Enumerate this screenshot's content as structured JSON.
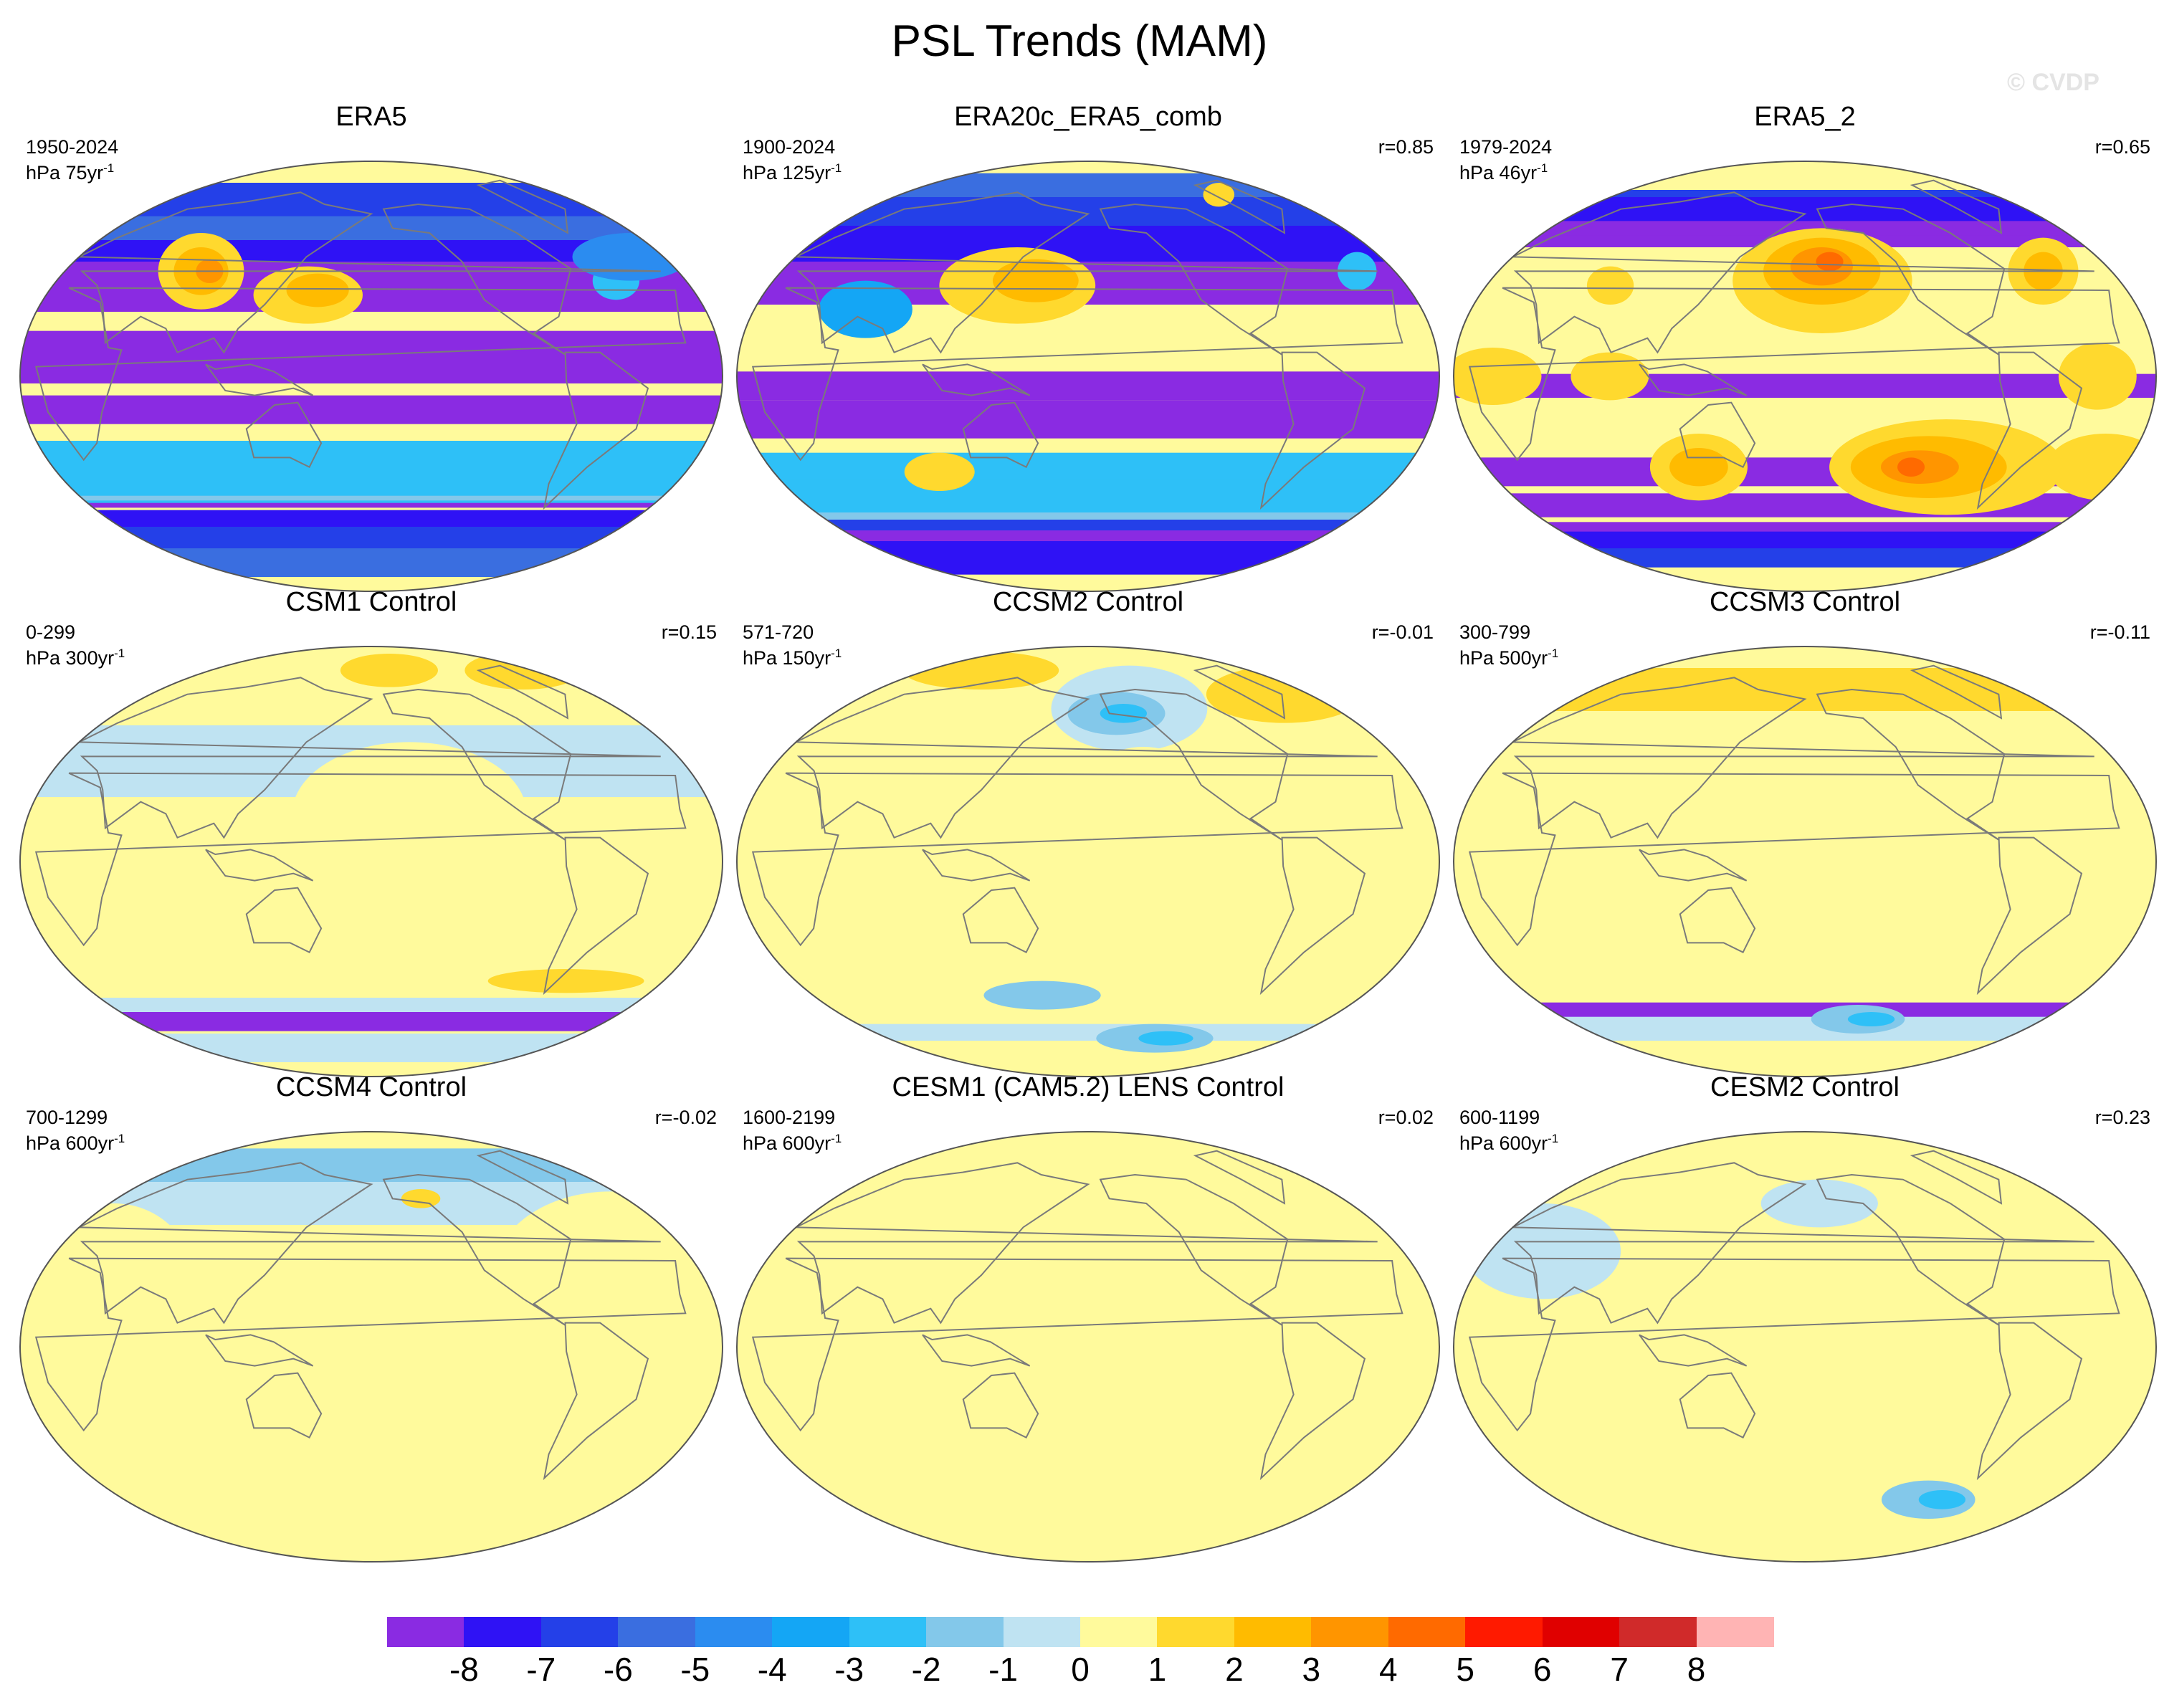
{
  "figure": {
    "title": "PSL Trends (MAM)",
    "watermark": "© CVDP"
  },
  "colors": {
    "scale": [
      "#8a2be2",
      "#2f12f5",
      "#2440e8",
      "#3a6ee0",
      "#2b8cf0",
      "#14a6f5",
      "#2ec0f7",
      "#83c8ea",
      "#bfe3f2",
      "#fffa9c",
      "#ffd92e",
      "#ffbb00",
      "#ff9500",
      "#ff6a00",
      "#ff1a00",
      "#e00000",
      "#d02a2a",
      "#ffb4b4"
    ],
    "land_outline": "#7a7a7a",
    "map_border": "#555555"
  },
  "colorbar": {
    "labels": [
      "-8",
      "-7",
      "-6",
      "-5",
      "-4",
      "-3",
      "-2",
      "-1",
      "0",
      "1",
      "2",
      "3",
      "4",
      "5",
      "6",
      "7",
      "8"
    ]
  },
  "panels": [
    {
      "title": "ERA5",
      "years": "1950-2024",
      "units_prefix": "hPa 75yr",
      "units_exp": "-1",
      "r": "",
      "features": [
        [
          "b",
          -180,
          -62,
          360,
          12,
          1
        ],
        [
          "b",
          -180,
          -72,
          360,
          18,
          2
        ],
        [
          "b",
          -180,
          -78,
          360,
          12,
          3
        ],
        [
          "b",
          -180,
          -52,
          360,
          6,
          0
        ],
        [
          "b",
          -180,
          48,
          360,
          42,
          0
        ],
        [
          "b",
          -180,
          62,
          360,
          28,
          1
        ],
        [
          "b",
          -60,
          72,
          150,
          18,
          2
        ],
        [
          "b",
          -40,
          62,
          80,
          10,
          3
        ],
        [
          "b",
          -180,
          8,
          360,
          22,
          0
        ],
        [
          "b",
          -180,
          -14,
          360,
          12,
          0
        ],
        [
          "b",
          70,
          -40,
          230,
          26,
          6
        ],
        [
          "b",
          80,
          -44,
          170,
          16,
          7
        ],
        [
          "b",
          90,
          -44,
          30,
          8,
          8
        ],
        [
          "b",
          175,
          -40,
          50,
          8,
          8
        ],
        [
          "b",
          -130,
          -40,
          130,
          20,
          6
        ],
        [
          "e",
          80,
          44,
          22,
          16,
          10
        ],
        [
          "e",
          80,
          44,
          14,
          10,
          11
        ],
        [
          "e",
          85,
          44,
          7,
          5,
          12
        ],
        [
          "e",
          145,
          34,
          28,
          12,
          10
        ],
        [
          "e",
          150,
          36,
          16,
          7,
          11
        ],
        [
          "e",
          -40,
          40,
          12,
          8,
          6
        ],
        [
          "e",
          -20,
          50,
          30,
          10,
          4
        ]
      ]
    },
    {
      "title": "ERA20c_ERA5_comb",
      "years": "1900-2024",
      "units_prefix": "hPa 125yr",
      "units_exp": "-1",
      "r": "r=0.85",
      "features": [
        [
          "b",
          -180,
          -60,
          360,
          12,
          1
        ],
        [
          "b",
          -180,
          -68,
          360,
          20,
          0
        ],
        [
          "b",
          -180,
          -76,
          360,
          14,
          1
        ],
        [
          "b",
          -180,
          -62,
          360,
          5,
          2
        ],
        [
          "b",
          -180,
          50,
          360,
          40,
          0
        ],
        [
          "b",
          -180,
          62,
          360,
          28,
          1
        ],
        [
          "b",
          -180,
          72,
          360,
          18,
          2
        ],
        [
          "b",
          -20,
          80,
          50,
          10,
          3
        ],
        [
          "b",
          -180,
          -18,
          360,
          16,
          0
        ],
        [
          "b",
          -180,
          -4,
          120,
          12,
          0
        ],
        [
          "b",
          70,
          -44,
          250,
          24,
          6
        ],
        [
          "b",
          130,
          -50,
          170,
          20,
          7
        ],
        [
          "b",
          180,
          -48,
          80,
          12,
          8
        ],
        [
          "b",
          90,
          -48,
          40,
          10,
          8
        ],
        [
          "b",
          -120,
          -42,
          120,
          16,
          6
        ],
        [
          "b",
          -80,
          -50,
          40,
          14,
          6
        ],
        [
          "e",
          140,
          38,
          40,
          16,
          10
        ],
        [
          "e",
          150,
          40,
          22,
          9,
          11
        ],
        [
          "e",
          -22,
          44,
          10,
          8,
          6
        ],
        [
          "e",
          -55,
          76,
          8,
          5,
          10
        ],
        [
          "e",
          60,
          28,
          24,
          12,
          5
        ],
        [
          "e",
          95,
          -40,
          18,
          8,
          10
        ]
      ]
    },
    {
      "title": "ERA5_2",
      "years": "1979-2024",
      "units_prefix": "hPa 46yr",
      "units_exp": "-1",
      "r": "r=0.65",
      "features": [
        [
          "b",
          -180,
          -66,
          360,
          10,
          0
        ],
        [
          "b",
          -180,
          -72,
          360,
          14,
          1
        ],
        [
          "b",
          -180,
          -76,
          360,
          8,
          2
        ],
        [
          "b",
          -180,
          -54,
          360,
          10,
          0
        ],
        [
          "b",
          -180,
          62,
          140,
          16,
          0
        ],
        [
          "b",
          -180,
          70,
          140,
          12,
          1
        ],
        [
          "b",
          -170,
          74,
          100,
          8,
          2
        ],
        [
          "b",
          -40,
          66,
          60,
          14,
          0
        ],
        [
          "b",
          -30,
          70,
          40,
          10,
          1
        ],
        [
          "b",
          -180,
          -4,
          360,
          10,
          0
        ],
        [
          "b",
          -180,
          -40,
          360,
          12,
          0
        ],
        [
          "e",
          -170,
          40,
          46,
          22,
          10
        ],
        [
          "e",
          -170,
          44,
          30,
          14,
          11
        ],
        [
          "e",
          -170,
          46,
          16,
          8,
          12
        ],
        [
          "e",
          -165,
          48,
          7,
          4,
          13
        ],
        [
          "e",
          -100,
          -38,
          60,
          20,
          10
        ],
        [
          "e",
          -110,
          -38,
          40,
          13,
          11
        ],
        [
          "e",
          -115,
          -38,
          20,
          7,
          12
        ],
        [
          "e",
          -120,
          -38,
          7,
          4,
          13
        ],
        [
          "e",
          120,
          -38,
          25,
          14,
          10
        ],
        [
          "e",
          120,
          -38,
          15,
          8,
          11
        ],
        [
          "e",
          -10,
          -38,
          30,
          14,
          10
        ],
        [
          "e",
          -40,
          44,
          18,
          14,
          10
        ],
        [
          "e",
          -40,
          44,
          10,
          8,
          11
        ],
        [
          "e",
          70,
          38,
          12,
          8,
          10
        ],
        [
          "e",
          -30,
          0,
          20,
          14,
          10
        ],
        [
          "e",
          80,
          0,
          20,
          10,
          10
        ],
        [
          "e",
          20,
          0,
          25,
          12,
          10
        ]
      ]
    },
    {
      "title": "CSM1 Control",
      "years": "0-299",
      "units_prefix": "hPa 300yr",
      "units_exp": "-1",
      "r": "r=0.15",
      "features": [
        [
          "b",
          -180,
          -64,
          360,
          14,
          0
        ],
        [
          "b",
          -180,
          -60,
          360,
          6,
          8
        ],
        [
          "b",
          -180,
          -78,
          360,
          12,
          8
        ],
        [
          "b",
          -180,
          48,
          360,
          42,
          8
        ],
        [
          "b",
          -180,
          68,
          360,
          22,
          9
        ],
        [
          "e",
          -10,
          80,
          30,
          8,
          10
        ],
        [
          "e",
          -160,
          80,
          25,
          7,
          10
        ],
        [
          "e",
          -160,
          20,
          60,
          30,
          9
        ],
        [
          "e",
          -160,
          -20,
          50,
          18,
          9
        ],
        [
          "e",
          90,
          -30,
          60,
          18,
          9
        ],
        [
          "e",
          -80,
          -46,
          70,
          10,
          9
        ],
        [
          "e",
          -60,
          -50,
          40,
          5,
          10
        ],
        [
          "e",
          180,
          20,
          30,
          20,
          9
        ]
      ]
    },
    {
      "title": "CCSM2 Control",
      "years": "571-720",
      "units_prefix": "hPa 150yr",
      "units_exp": "-1",
      "r": "r=-0.01",
      "features": [
        [
          "b",
          -180,
          -62,
          360,
          12,
          9
        ],
        [
          "b",
          -180,
          -72,
          360,
          8,
          8
        ],
        [
          "b",
          -180,
          -80,
          360,
          10,
          9
        ],
        [
          "b",
          -180,
          56,
          360,
          34,
          9
        ],
        [
          "e",
          -150,
          64,
          40,
          18,
          8
        ],
        [
          "e",
          -160,
          62,
          25,
          9,
          7
        ],
        [
          "e",
          -155,
          62,
          12,
          4,
          6
        ],
        [
          "e",
          -20,
          70,
          40,
          12,
          10
        ],
        [
          "e",
          60,
          80,
          40,
          8,
          10
        ],
        [
          "e",
          -120,
          -74,
          30,
          6,
          7
        ],
        [
          "e",
          -110,
          -74,
          14,
          3,
          6
        ],
        [
          "e",
          150,
          -56,
          30,
          6,
          7
        ],
        [
          "e",
          -150,
          30,
          30,
          18,
          9
        ],
        [
          "e",
          -150,
          10,
          40,
          14,
          9
        ],
        [
          "e",
          -40,
          -20,
          40,
          14,
          9
        ],
        [
          "e",
          60,
          -30,
          30,
          10,
          9
        ],
        [
          "e",
          150,
          -40,
          30,
          10,
          9
        ]
      ]
    },
    {
      "title": "CCSM3 Control",
      "years": "300-799",
      "units_prefix": "hPa 500yr",
      "units_exp": "-1",
      "r": "r=-0.11",
      "features": [
        [
          "b",
          -180,
          -66,
          360,
          14,
          0
        ],
        [
          "b",
          -180,
          -70,
          360,
          10,
          8
        ],
        [
          "b",
          -180,
          60,
          360,
          30,
          9
        ],
        [
          "b",
          -180,
          72,
          360,
          18,
          10
        ],
        [
          "b",
          -180,
          -30,
          360,
          30,
          9
        ],
        [
          "e",
          -150,
          10,
          50,
          18,
          9
        ],
        [
          "e",
          30,
          20,
          40,
          20,
          9
        ],
        [
          "e",
          90,
          -20,
          30,
          20,
          9
        ],
        [
          "e",
          -140,
          -66,
          24,
          6,
          7
        ],
        [
          "e",
          -130,
          -66,
          12,
          3,
          6
        ]
      ]
    },
    {
      "title": "CCSM4 Control",
      "years": "700-1299",
      "units_prefix": "hPa 600yr",
      "units_exp": "-1",
      "r": "r=-0.02",
      "features": [
        [
          "b",
          -180,
          -80,
          360,
          30,
          9
        ],
        [
          "b",
          -180,
          64,
          360,
          26,
          8
        ],
        [
          "b",
          -180,
          76,
          360,
          14,
          7
        ],
        [
          "e",
          -145,
          62,
          10,
          4,
          10
        ],
        [
          "e",
          -50,
          30,
          60,
          35,
          9
        ],
        [
          "e",
          100,
          0,
          30,
          30,
          9
        ],
        [
          "e",
          -120,
          -40,
          40,
          20,
          9
        ],
        [
          "e",
          40,
          30,
          40,
          30,
          9
        ],
        [
          "e",
          -170,
          -20,
          20,
          20,
          9
        ]
      ]
    },
    {
      "title": "CESM1 (CAM5.2) LENS Control",
      "years": "1600-2199",
      "units_prefix": "hPa 600yr",
      "units_exp": "-1",
      "r": "r=0.02",
      "features": [
        [
          "b",
          -180,
          60,
          360,
          30,
          9
        ],
        [
          "e",
          -160,
          20,
          40,
          24,
          9
        ],
        [
          "e",
          -160,
          -30,
          40,
          24,
          9
        ],
        [
          "e",
          60,
          -60,
          70,
          14,
          9
        ],
        [
          "e",
          -60,
          -70,
          90,
          10,
          9
        ],
        [
          "e",
          150,
          -30,
          30,
          20,
          9
        ],
        [
          "e",
          40,
          40,
          40,
          18,
          9
        ],
        [
          "e",
          -100,
          -10,
          20,
          20,
          9
        ]
      ]
    },
    {
      "title": "CESM2 Control",
      "years": "600-1199",
      "units_prefix": "hPa 600yr",
      "units_exp": "-1",
      "r": "r=0.23",
      "features": [
        [
          "b",
          -180,
          -75,
          360,
          50,
          9
        ],
        [
          "b",
          -180,
          60,
          360,
          30,
          9
        ],
        [
          "e",
          -90,
          -64,
          24,
          8,
          7
        ],
        [
          "e",
          -80,
          -64,
          12,
          4,
          6
        ],
        [
          "e",
          30,
          40,
          40,
          20,
          8
        ],
        [
          "e",
          -60,
          0,
          40,
          20,
          9
        ],
        [
          "e",
          160,
          -20,
          30,
          30,
          9
        ],
        [
          "e",
          -170,
          60,
          30,
          10,
          8
        ]
      ]
    }
  ]
}
